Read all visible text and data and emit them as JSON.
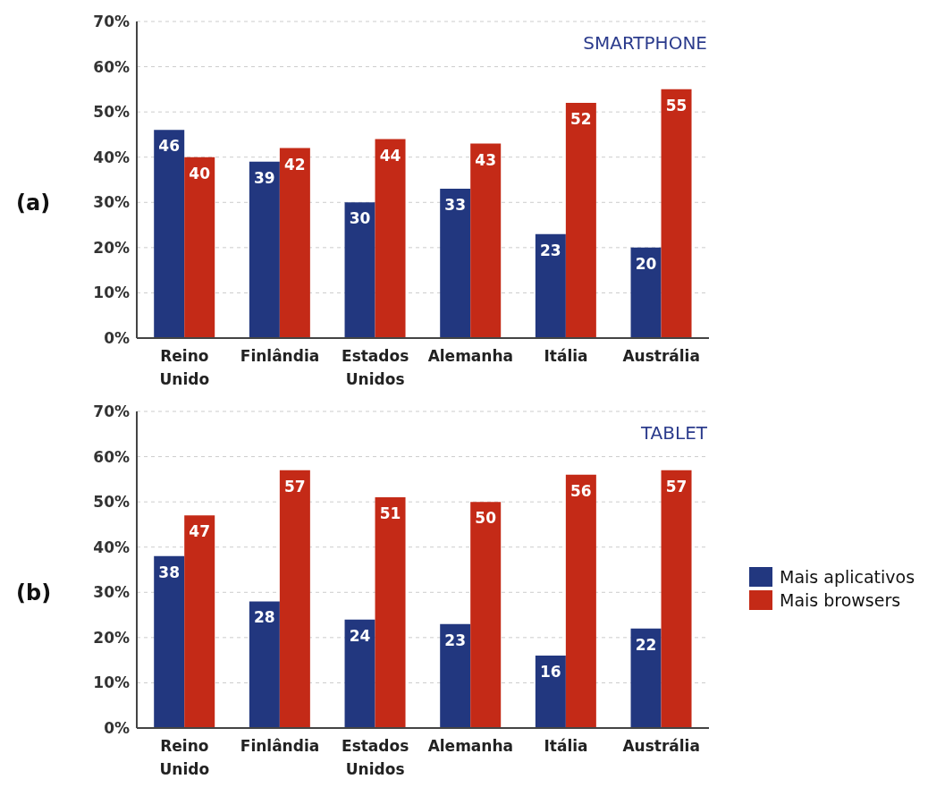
{
  "chart_data": [
    {
      "type": "bar",
      "title": "SMARTPHONE",
      "annotations": [
        "(a)"
      ],
      "categories": [
        "Reino Unido",
        "Finlândia",
        "Estados Unidos",
        "Alemanha",
        "Itália",
        "Austrália"
      ],
      "series": [
        {
          "color": "#22377f",
          "values": [
            46,
            39,
            30,
            33,
            23,
            20
          ]
        },
        {
          "color": "#c42a17",
          "values": [
            40,
            42,
            44,
            43,
            52,
            55
          ]
        }
      ],
      "ylim": [
        0,
        70
      ],
      "yticks": [
        {
          "value": 0,
          "label": "0%"
        },
        {
          "value": 10,
          "label": "10%"
        },
        {
          "value": 20,
          "label": "20%"
        },
        {
          "value": 30,
          "label": "30%"
        },
        {
          "value": 40,
          "label": "40%"
        },
        {
          "value": 50,
          "label": "50%"
        },
        {
          "value": 60,
          "label": "60%"
        },
        {
          "value": 70,
          "label": "70%"
        }
      ],
      "grid": "y",
      "data_labels": true,
      "legend": false
    },
    {
      "type": "bar",
      "title": "TABLET",
      "annotations": [
        "(b)"
      ],
      "categories": [
        "Reino Unido",
        "Finlândia",
        "Estados Unidos",
        "Alemanha",
        "Itália",
        "Austrália"
      ],
      "series": [
        {
          "name": "Mais aplicativos",
          "color": "#22377f",
          "values": [
            38,
            28,
            24,
            23,
            16,
            22
          ]
        },
        {
          "name": "Mais browsers",
          "color": "#c42a17",
          "values": [
            47,
            57,
            51,
            50,
            56,
            57
          ]
        }
      ],
      "ylim": [
        0,
        70
      ],
      "yticks": [
        {
          "value": 0,
          "label": "0%"
        },
        {
          "value": 10,
          "label": "10%"
        },
        {
          "value": 20,
          "label": "20%"
        },
        {
          "value": 30,
          "label": "30%"
        },
        {
          "value": 40,
          "label": "40%"
        },
        {
          "value": 50,
          "label": "50%"
        },
        {
          "value": 60,
          "label": "60%"
        },
        {
          "value": 70,
          "label": "70%"
        }
      ],
      "grid": "y",
      "data_labels": true,
      "legend": "right"
    }
  ]
}
